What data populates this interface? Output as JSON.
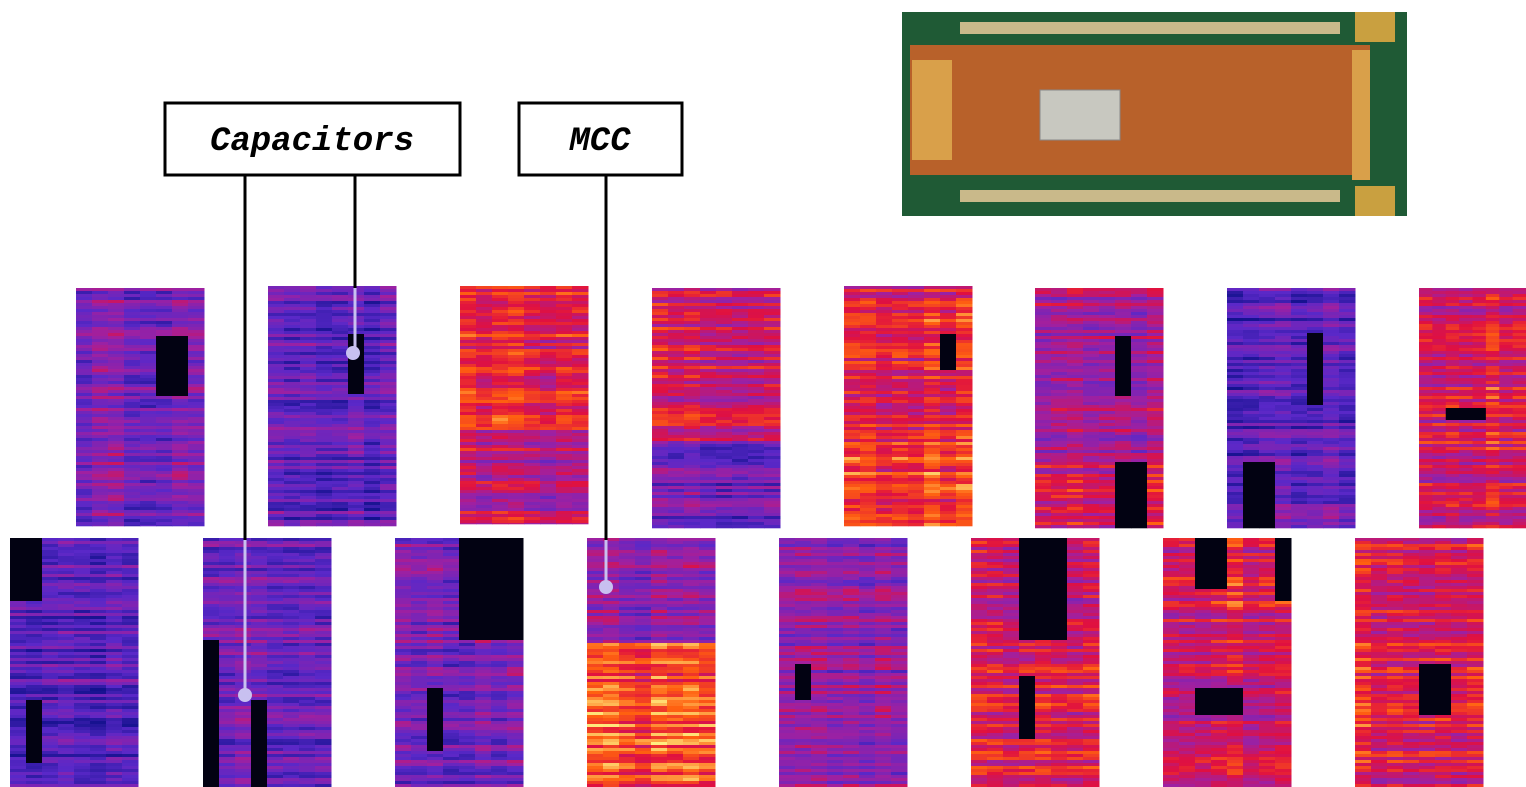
{
  "callouts": [
    "Capacitors",
    "MCC"
  ]
}
